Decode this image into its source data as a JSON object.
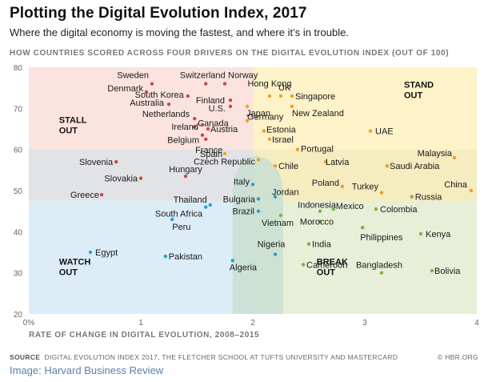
{
  "header": {
    "title": "Plotting the Digital Evolution Index, 2017",
    "subtitle": "Where the digital economy is moving the fastest, and where it’s in trouble."
  },
  "footer": {
    "source_label": "SOURCE",
    "source_text": "DIGITAL EVOLUTION INDEX 2017, THE FLETCHER SCHOOL AT TUFTS UNIVERSITY AND MASTERCARD",
    "copyright": "© HBR.ORG",
    "image_credit": "Image: Harvard Business Review"
  },
  "chart_data": {
    "type": "scatter",
    "title": "HOW COUNTRIES SCORED ACROSS FOUR DRIVERS ON THE DIGITAL EVOLUTION INDEX (OUT OF 100)",
    "xlabel": "RATE OF CHANGE IN DIGITAL EVOLUTION, 2008–2015",
    "ylabel": "",
    "xlim": [
      0,
      4
    ],
    "ylim": [
      20,
      80
    ],
    "xticks": [
      {
        "value": 0,
        "label": "0%"
      },
      {
        "value": 1,
        "label": "1"
      },
      {
        "value": 2,
        "label": "2"
      },
      {
        "value": 3,
        "label": "3"
      },
      {
        "value": 4,
        "label": "4"
      }
    ],
    "yticks": [
      20,
      30,
      40,
      50,
      60,
      70,
      80
    ],
    "colors": {
      "stall_out": "#c84b45",
      "stand_out": "#f0a020",
      "break_out": "#7cb342",
      "watch_out": "#29a3c7",
      "bg_stall_out": "#fbe3e0",
      "bg_stand_out": "#fdf2c8",
      "bg_break_out": "#e8efd8",
      "bg_watch_out": "#dcedf7",
      "bg_mid_band": "#e2e3e6",
      "bg_overlap": "#f5ecc0",
      "bg_center": "#c9dfd3"
    },
    "quadrants": [
      {
        "key": "stall_out",
        "line1": "STALL",
        "line2": "OUT"
      },
      {
        "key": "stand_out",
        "line1": "STAND",
        "line2": "OUT"
      },
      {
        "key": "watch_out",
        "line1": "WATCH",
        "line2": "OUT"
      },
      {
        "key": "break_out",
        "line1": "BREAK",
        "line2": "OUT"
      }
    ],
    "series": [
      {
        "name": "Stall Out",
        "key": "stall_out",
        "points": [
          {
            "label": "Sweden",
            "x": 1.1,
            "y": 76
          },
          {
            "label": "Switzerland",
            "x": 1.58,
            "y": 76
          },
          {
            "label": "Norway",
            "x": 1.75,
            "y": 76
          },
          {
            "label": "Denmark",
            "x": 1.05,
            "y": 74
          },
          {
            "label": "South Korea",
            "x": 1.42,
            "y": 73
          },
          {
            "label": "Finland",
            "x": 1.8,
            "y": 72
          },
          {
            "label": "Australia",
            "x": 1.25,
            "y": 71
          },
          {
            "label": "U.S.",
            "x": 1.8,
            "y": 70.5
          },
          {
            "label": "Netherlands",
            "x": 1.48,
            "y": 67.5
          },
          {
            "label": "Canada",
            "x": 1.48,
            "y": 65.5
          },
          {
            "label": "Ireland",
            "x": 1.55,
            "y": 66
          },
          {
            "label": "Austria",
            "x": 1.6,
            "y": 65
          },
          {
            "label": "Belgium",
            "x": 1.55,
            "y": 63.5
          },
          {
            "label": "France",
            "x": 1.58,
            "y": 62.5
          },
          {
            "label": "Slovenia",
            "x": 0.78,
            "y": 57
          },
          {
            "label": "Slovakia",
            "x": 1.0,
            "y": 53
          },
          {
            "label": "Hungary",
            "x": 1.4,
            "y": 53.5
          },
          {
            "label": "Greece",
            "x": 0.65,
            "y": 49
          }
        ]
      },
      {
        "name": "Stand Out",
        "key": "stand_out",
        "points": [
          {
            "label": "Hong Kong",
            "x": 2.15,
            "y": 73
          },
          {
            "label": "UK",
            "x": 2.25,
            "y": 73
          },
          {
            "label": "Singapore",
            "x": 2.35,
            "y": 73
          },
          {
            "label": "Japan",
            "x": 1.95,
            "y": 70.5
          },
          {
            "label": "New Zealand",
            "x": 2.35,
            "y": 70.5
          },
          {
            "label": "Germany",
            "x": 1.95,
            "y": 67
          },
          {
            "label": "Estonia",
            "x": 2.1,
            "y": 64.5
          },
          {
            "label": "Israel",
            "x": 2.15,
            "y": 62.5
          },
          {
            "label": "UAE",
            "x": 3.05,
            "y": 64.5
          },
          {
            "label": "Spain",
            "x": 1.75,
            "y": 59
          },
          {
            "label": "Czech Republic",
            "x": 2.05,
            "y": 57.5
          },
          {
            "label": "Portugal",
            "x": 2.4,
            "y": 60
          },
          {
            "label": "Latvia",
            "x": 2.65,
            "y": 57
          },
          {
            "label": "Chile",
            "x": 2.2,
            "y": 56
          },
          {
            "label": "Malaysia",
            "x": 3.8,
            "y": 58
          },
          {
            "label": "Saudi Arabia",
            "x": 3.2,
            "y": 56
          },
          {
            "label": "Poland",
            "x": 2.8,
            "y": 51
          },
          {
            "label": "Turkey",
            "x": 3.15,
            "y": 49.5
          },
          {
            "label": "China",
            "x": 3.95,
            "y": 50
          }
        ]
      },
      {
        "name": "Watch Out",
        "key": "watch_out",
        "points": [
          {
            "label": "Italy",
            "x": 2.0,
            "y": 51.5
          },
          {
            "label": "Bulgaria",
            "x": 2.05,
            "y": 48
          },
          {
            "label": "Jordan",
            "x": 2.2,
            "y": 48.5
          },
          {
            "label": "Thailand",
            "x": 1.62,
            "y": 46.5
          },
          {
            "label": "South Africa",
            "x": 1.58,
            "y": 46
          },
          {
            "label": "Brazil",
            "x": 2.05,
            "y": 45
          },
          {
            "label": "Peru",
            "x": 1.28,
            "y": 43
          },
          {
            "label": "Egypt",
            "x": 0.55,
            "y": 35
          },
          {
            "label": "Pakistan",
            "x": 1.22,
            "y": 34
          },
          {
            "label": "Nigeria",
            "x": 2.2,
            "y": 34.5
          },
          {
            "label": "Algeria",
            "x": 1.82,
            "y": 33
          }
        ]
      },
      {
        "name": "Break Out",
        "key": "break_out",
        "points": [
          {
            "label": "Russia",
            "x": 3.42,
            "y": 48.5
          },
          {
            "label": "Vietnam",
            "x": 2.25,
            "y": 44
          },
          {
            "label": "Indonesia",
            "x": 2.6,
            "y": 45
          },
          {
            "label": "Mexico",
            "x": 2.72,
            "y": 45.5
          },
          {
            "label": "Colombia",
            "x": 3.1,
            "y": 45.5
          },
          {
            "label": "Morocco",
            "x": 2.6,
            "y": 42.5
          },
          {
            "label": "Philippines",
            "x": 2.98,
            "y": 41
          },
          {
            "label": "Kenya",
            "x": 3.5,
            "y": 39.5
          },
          {
            "label": "India",
            "x": 2.5,
            "y": 37
          },
          {
            "label": "Cameroon",
            "x": 2.45,
            "y": 32
          },
          {
            "label": "Bangladesh",
            "x": 3.15,
            "y": 30
          },
          {
            "label": "Bolivia",
            "x": 3.6,
            "y": 30.5
          }
        ]
      }
    ]
  }
}
